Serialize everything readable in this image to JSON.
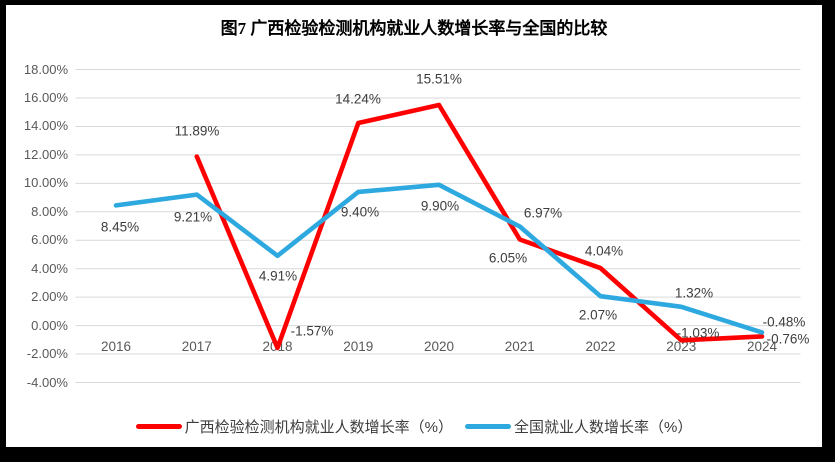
{
  "title": "图7 广西检验检测机构就业人数增长率与全国的比较",
  "colors": {
    "series_red": "#ff0000",
    "series_blue": "#2ea9e0",
    "axis_text": "#595959",
    "data_label_text": "#3d3d3d",
    "gridline": "#d9d9d9",
    "frame": "#000000",
    "background": "#ffffff"
  },
  "chart_data": {
    "type": "line",
    "title": "图7 广西检验检测机构就业人数增长率与全国的比较",
    "categories": [
      "2016",
      "2017",
      "2018",
      "2019",
      "2020",
      "2021",
      "2022",
      "2023",
      "2024"
    ],
    "series": [
      {
        "name": "广西检验检测机构就业人数增长率（%）",
        "color": "#ff0000",
        "values": [
          null,
          11.89,
          -1.57,
          14.24,
          15.51,
          6.05,
          4.04,
          -1.03,
          -0.76
        ]
      },
      {
        "name": "全国就业人数增长率（%）",
        "color": "#2ea9e0",
        "values": [
          8.45,
          9.21,
          4.91,
          9.4,
          9.9,
          6.97,
          2.07,
          1.32,
          -0.48
        ]
      }
    ],
    "y_ticks": [
      "18.00%",
      "16.00%",
      "14.00%",
      "12.00%",
      "10.00%",
      "8.00%",
      "6.00%",
      "4.00%",
      "2.00%",
      "0.00%",
      "-2.00%",
      "-4.00%"
    ],
    "y_tick_values": [
      18,
      16,
      14,
      12,
      10,
      8,
      6,
      4,
      2,
      0,
      -2,
      -4
    ],
    "ylim": [
      -4,
      18
    ],
    "xlabel": "",
    "ylabel": "",
    "grid": true,
    "data_labels": true,
    "legend_position": "bottom"
  }
}
